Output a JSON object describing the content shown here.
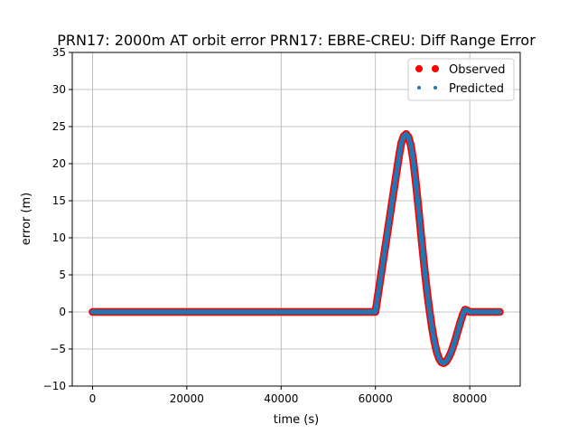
{
  "chart_data": {
    "type": "scatter",
    "title": "PRN17: 2000m AT orbit error PRN17: EBRE-CREU: Diff Range Error",
    "xlabel": "time (s)",
    "ylabel": "error (m)",
    "xlim": [
      -4300,
      90700
    ],
    "ylim": [
      -10,
      35
    ],
    "xticks": [
      0,
      20000,
      40000,
      60000,
      80000
    ],
    "xtick_labels": [
      "0",
      "20000",
      "40000",
      "60000",
      "80000"
    ],
    "yticks": [
      -10,
      -5,
      0,
      5,
      10,
      15,
      20,
      25,
      30,
      35
    ],
    "ytick_labels": [
      "−10",
      "−5",
      "0",
      "5",
      "10",
      "15",
      "20",
      "25",
      "30",
      "35"
    ],
    "grid": true,
    "legend_position": "upper right",
    "series": [
      {
        "name": "Observed",
        "color": "#ff0000",
        "marker": "large-dot",
        "x": [
          0,
          10000,
          20000,
          30000,
          40000,
          50000,
          60000,
          65000,
          65500,
          66000,
          66500,
          67000,
          67500,
          68000,
          68500,
          69000,
          69500,
          70000,
          70500,
          71000,
          71500,
          72000,
          72500,
          73000,
          73500,
          74000,
          74500,
          75000,
          75500,
          76000,
          76500,
          77000,
          77500,
          78000,
          78500,
          79000,
          79500,
          80000,
          82000,
          84000,
          86400
        ],
        "y": [
          0,
          0,
          0,
          0,
          0,
          0,
          0,
          21.0,
          22.8,
          23.7,
          24.0,
          23.6,
          22.5,
          20.5,
          17.8,
          14.8,
          11.6,
          8.4,
          5.3,
          2.5,
          0.0,
          -2.2,
          -4.0,
          -5.4,
          -6.3,
          -6.8,
          -6.9,
          -6.7,
          -6.2,
          -5.5,
          -4.6,
          -3.6,
          -2.5,
          -1.4,
          -0.4,
          0.3,
          0.2,
          0,
          0,
          0,
          0
        ]
      },
      {
        "name": "Predicted",
        "color": "#1f77b4",
        "marker": "small-dot",
        "x": [
          0,
          10000,
          20000,
          30000,
          40000,
          50000,
          60000,
          65000,
          65500,
          66000,
          66500,
          67000,
          67500,
          68000,
          68500,
          69000,
          69500,
          70000,
          70500,
          71000,
          71500,
          72000,
          72500,
          73000,
          73500,
          74000,
          74500,
          75000,
          75500,
          76000,
          76500,
          77000,
          77500,
          78000,
          78500,
          79000,
          79500,
          80000,
          82000,
          84000,
          86400
        ],
        "y": [
          0,
          0,
          0,
          0,
          0,
          0,
          0,
          21.0,
          22.8,
          23.7,
          24.0,
          23.6,
          22.5,
          20.5,
          17.8,
          14.8,
          11.6,
          8.4,
          5.3,
          2.5,
          0.0,
          -2.2,
          -4.0,
          -5.4,
          -6.3,
          -6.8,
          -6.9,
          -6.7,
          -6.2,
          -5.5,
          -4.6,
          -3.6,
          -2.5,
          -1.4,
          -0.4,
          0.3,
          0.2,
          0,
          0,
          0,
          0
        ]
      }
    ]
  }
}
